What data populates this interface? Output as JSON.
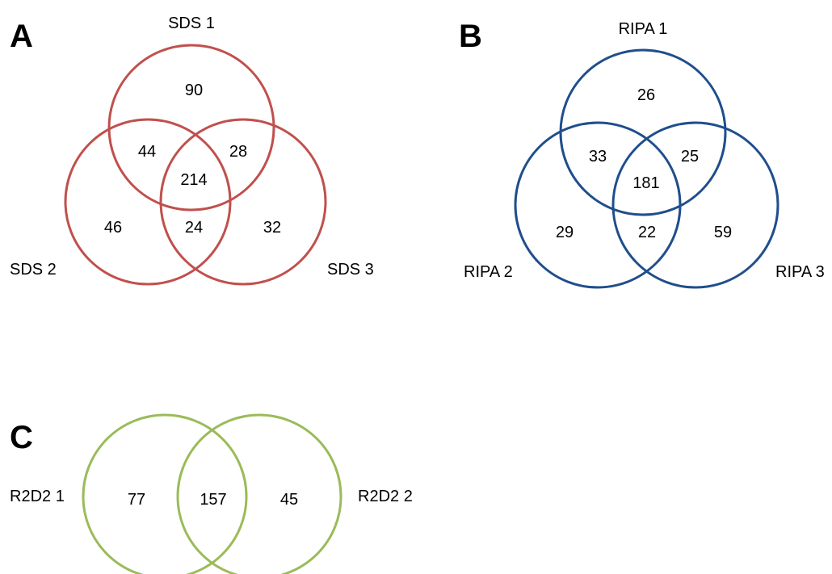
{
  "panels": {
    "a": {
      "letter": "A",
      "color": "#c0504d",
      "labels": {
        "set1": "SDS 1",
        "set2": "SDS 2",
        "set3": "SDS 3"
      },
      "counts": {
        "only1": "90",
        "only2": "46",
        "only3": "32",
        "s12": "44",
        "s13": "28",
        "s23": "24",
        "all": "214"
      }
    },
    "b": {
      "letter": "B",
      "color": "#1f4e8c",
      "labels": {
        "set1": "RIPA 1",
        "set2": "RIPA 2",
        "set3": "RIPA 3"
      },
      "counts": {
        "only1": "26",
        "only2": "29",
        "only3": "59",
        "s12": "33",
        "s13": "25",
        "s23": "22",
        "all": "181"
      }
    },
    "c": {
      "letter": "C",
      "color": "#9bbb59",
      "labels": {
        "set1": "R2D2 1",
        "set2": "R2D2 2"
      },
      "counts": {
        "only1": "77",
        "both": "157",
        "only2": "45"
      }
    }
  }
}
